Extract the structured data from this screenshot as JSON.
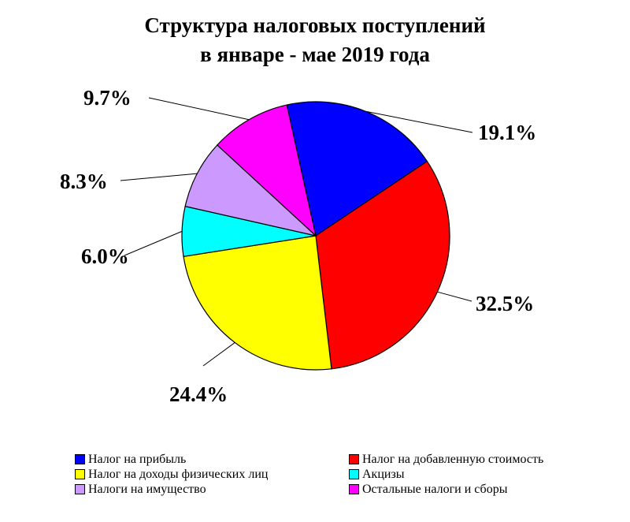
{
  "title_line1": "Структура налоговых поступлений",
  "title_line2": "в  январе - мае 2019 года",
  "chart_data": {
    "type": "pie",
    "title": "Структура налоговых поступлений в январе - мае 2019 года",
    "slices": [
      {
        "name": "Налог  на прибыль",
        "value": 19.1,
        "label": "19.1%",
        "color": "#0000ff"
      },
      {
        "name": "Налог на добавленную стоимость",
        "value": 32.5,
        "label": "32.5%",
        "color": "#ff0000"
      },
      {
        "name": "Налог на доходы  физических лиц",
        "value": 24.4,
        "label": "24.4%",
        "color": "#ffff00"
      },
      {
        "name": "Акцизы",
        "value": 6.0,
        "label": "6.0%",
        "color": "#00ffff"
      },
      {
        "name": "Налоги на имущество",
        "value": 8.3,
        "label": "8.3%",
        "color": "#cc99ff"
      },
      {
        "name": "Остальные налоги и сборы",
        "value": 9.7,
        "label": "9.7%",
        "color": "#ff00ff"
      }
    ],
    "legend_position": "bottom"
  }
}
